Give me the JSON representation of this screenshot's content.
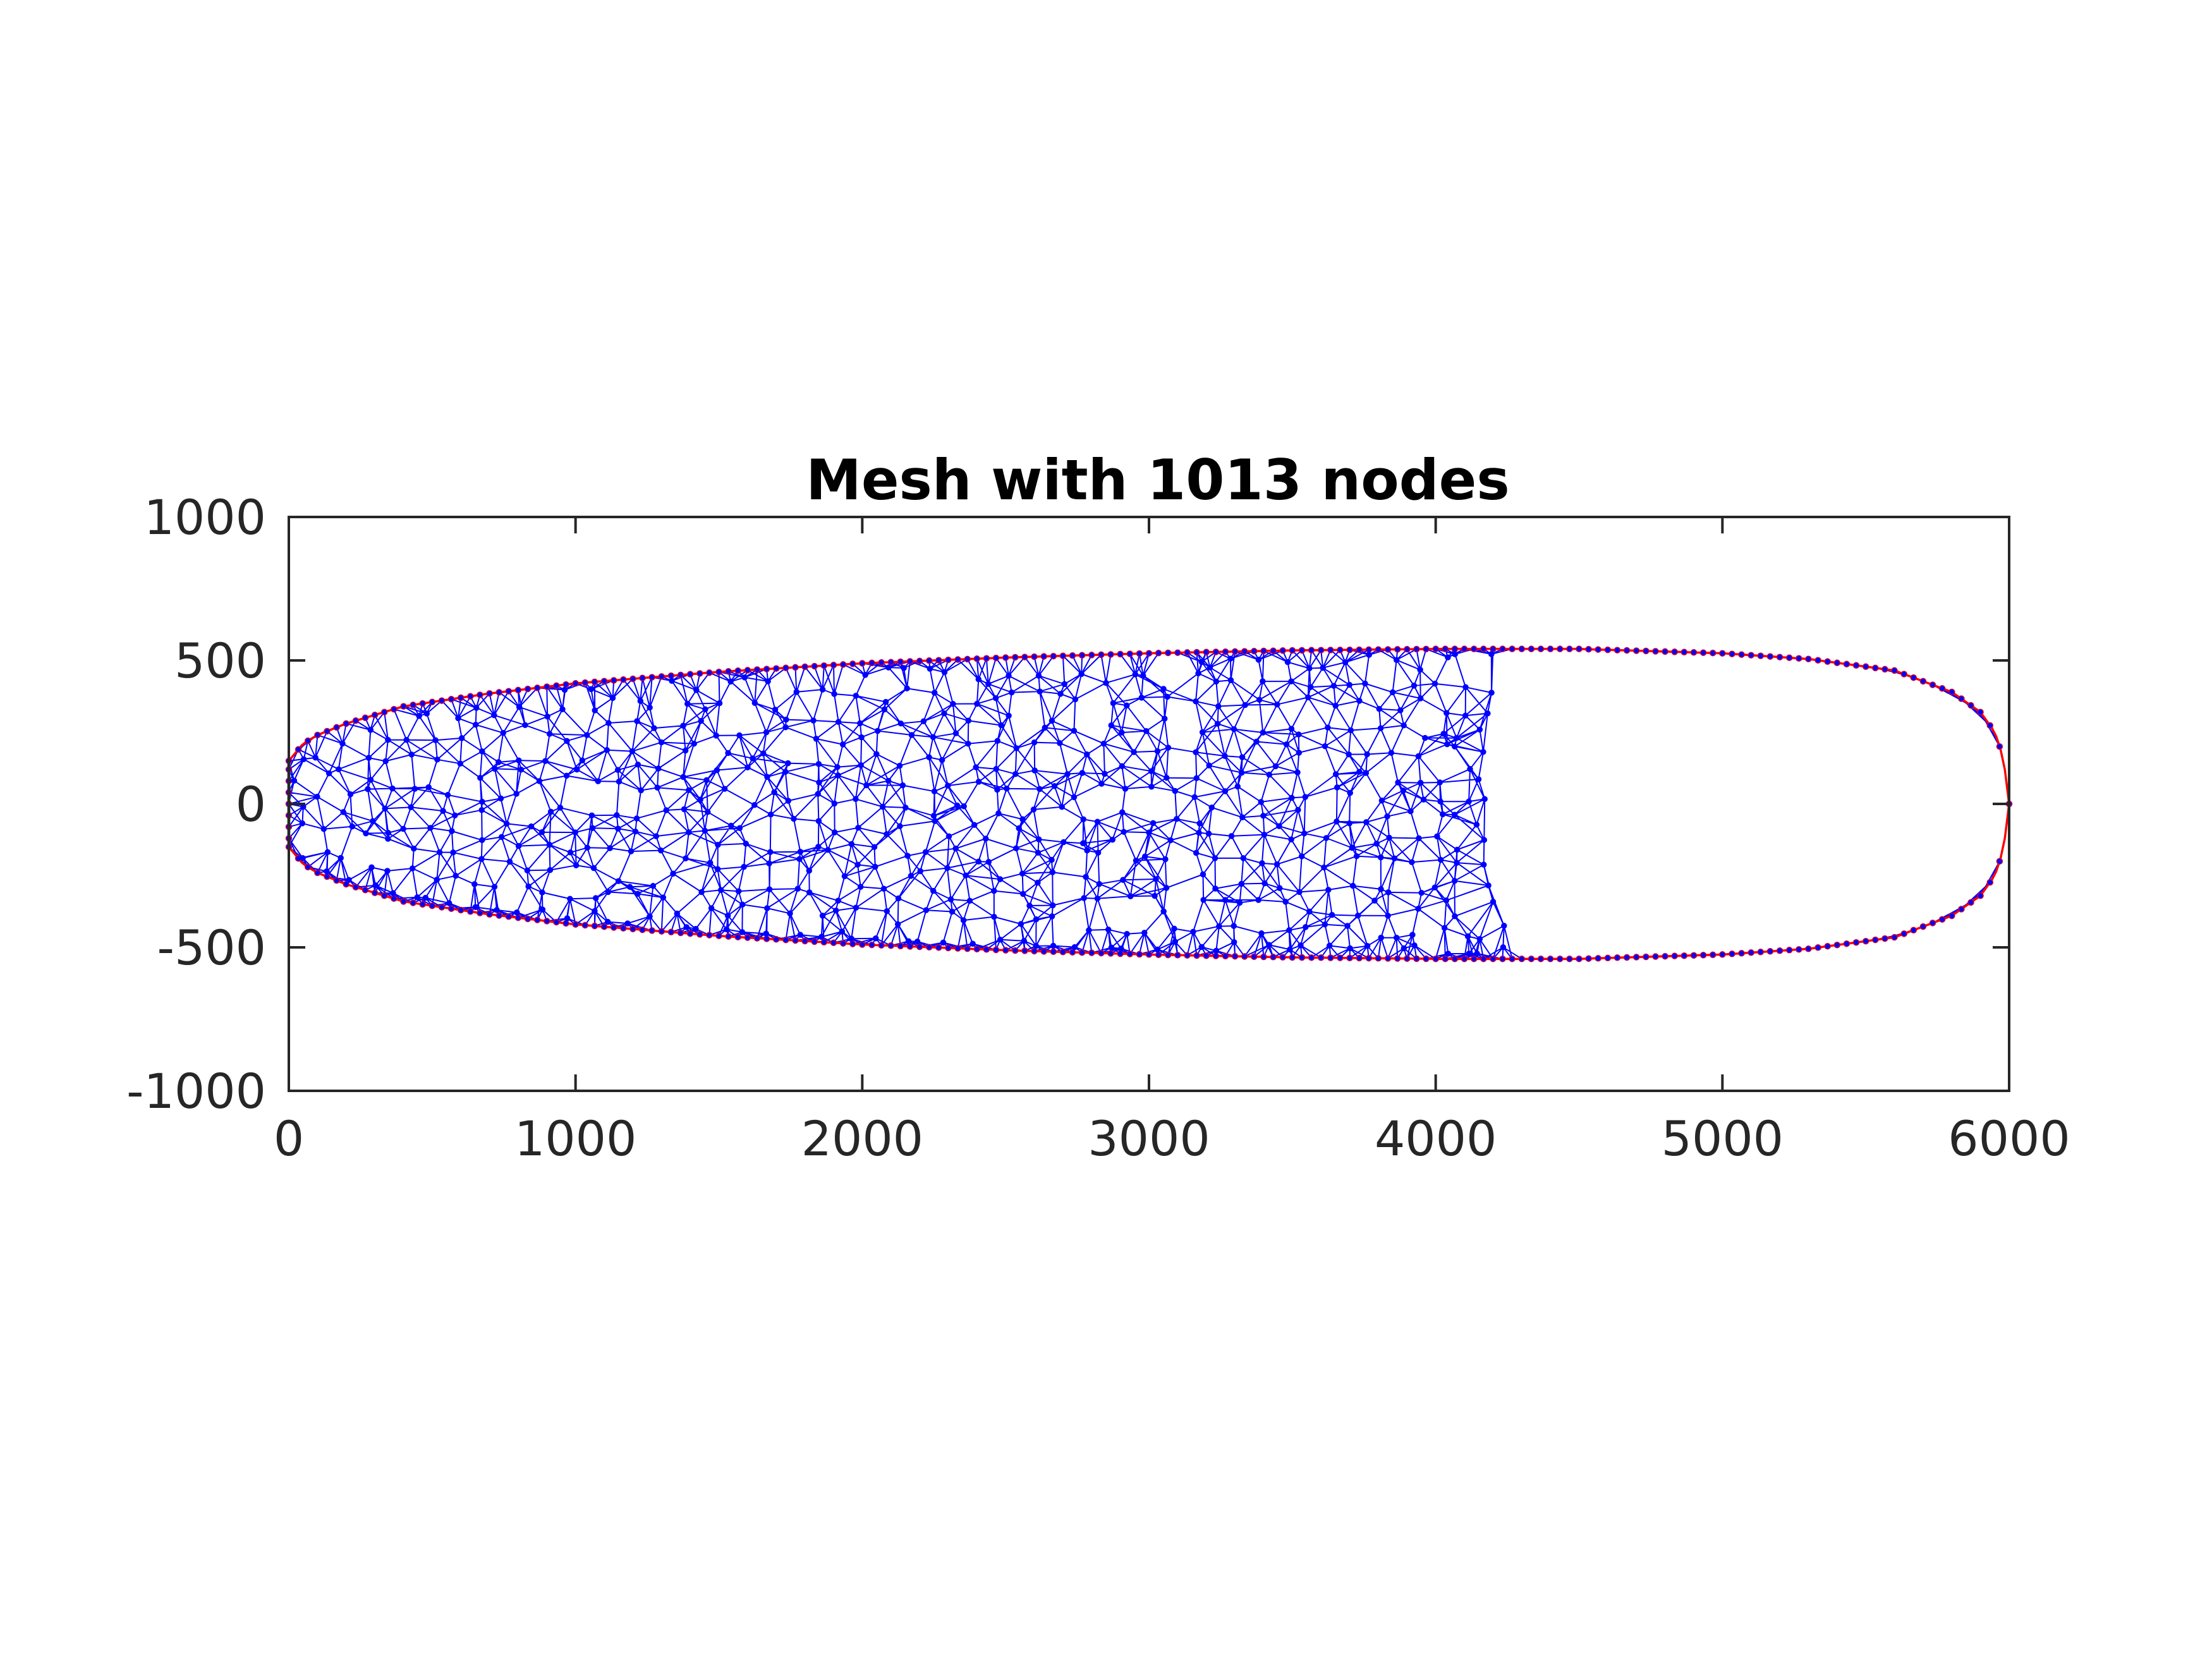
{
  "chart_data": {
    "type": "scatter",
    "title": "Mesh with 1013 nodes",
    "xlabel": "",
    "ylabel": "",
    "xlim": [
      0,
      6000
    ],
    "ylim": [
      -1000,
      1000
    ],
    "x_ticks": [
      0,
      1000,
      2000,
      3000,
      4000,
      5000,
      6000
    ],
    "y_ticks": [
      -1000,
      -500,
      0,
      500,
      1000
    ],
    "x_tick_labels": [
      "0",
      "1000",
      "2000",
      "3000",
      "4000",
      "5000",
      "6000"
    ],
    "y_tick_labels": [
      "-1000",
      "-500",
      "0",
      "500",
      "1000"
    ],
    "grid": false,
    "node_count": 1013,
    "domain_boundary": {
      "x_min": 0,
      "x_max": 6000,
      "half_height_profile": [
        [
          0,
          150
        ],
        [
          50,
          210
        ],
        [
          100,
          240
        ],
        [
          200,
          280
        ],
        [
          400,
          340
        ],
        [
          700,
          385
        ],
        [
          1000,
          420
        ],
        [
          1500,
          460
        ],
        [
          2000,
          490
        ],
        [
          2500,
          510
        ],
        [
          3000,
          525
        ],
        [
          3500,
          535
        ],
        [
          4000,
          540
        ],
        [
          4500,
          540
        ],
        [
          5000,
          525
        ],
        [
          5300,
          505
        ],
        [
          5600,
          465
        ],
        [
          5800,
          390
        ],
        [
          5900,
          320
        ],
        [
          5950,
          250
        ],
        [
          5980,
          160
        ],
        [
          6000,
          0
        ]
      ]
    },
    "colors": {
      "mesh_edges": "#0000ff",
      "nodes": "#0000ff",
      "node_edge": "#cc0033",
      "boundary": "#ff0000",
      "inflow_boundary": "#00b050",
      "axes": "#262626"
    }
  }
}
